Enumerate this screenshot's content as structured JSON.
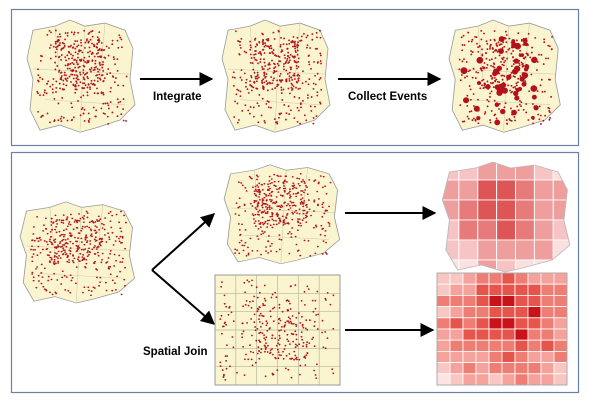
{
  "labels": {
    "integrate": "Integrate",
    "collect_events": "Collect Events",
    "spatial_join": "Spatial Join"
  }
}
